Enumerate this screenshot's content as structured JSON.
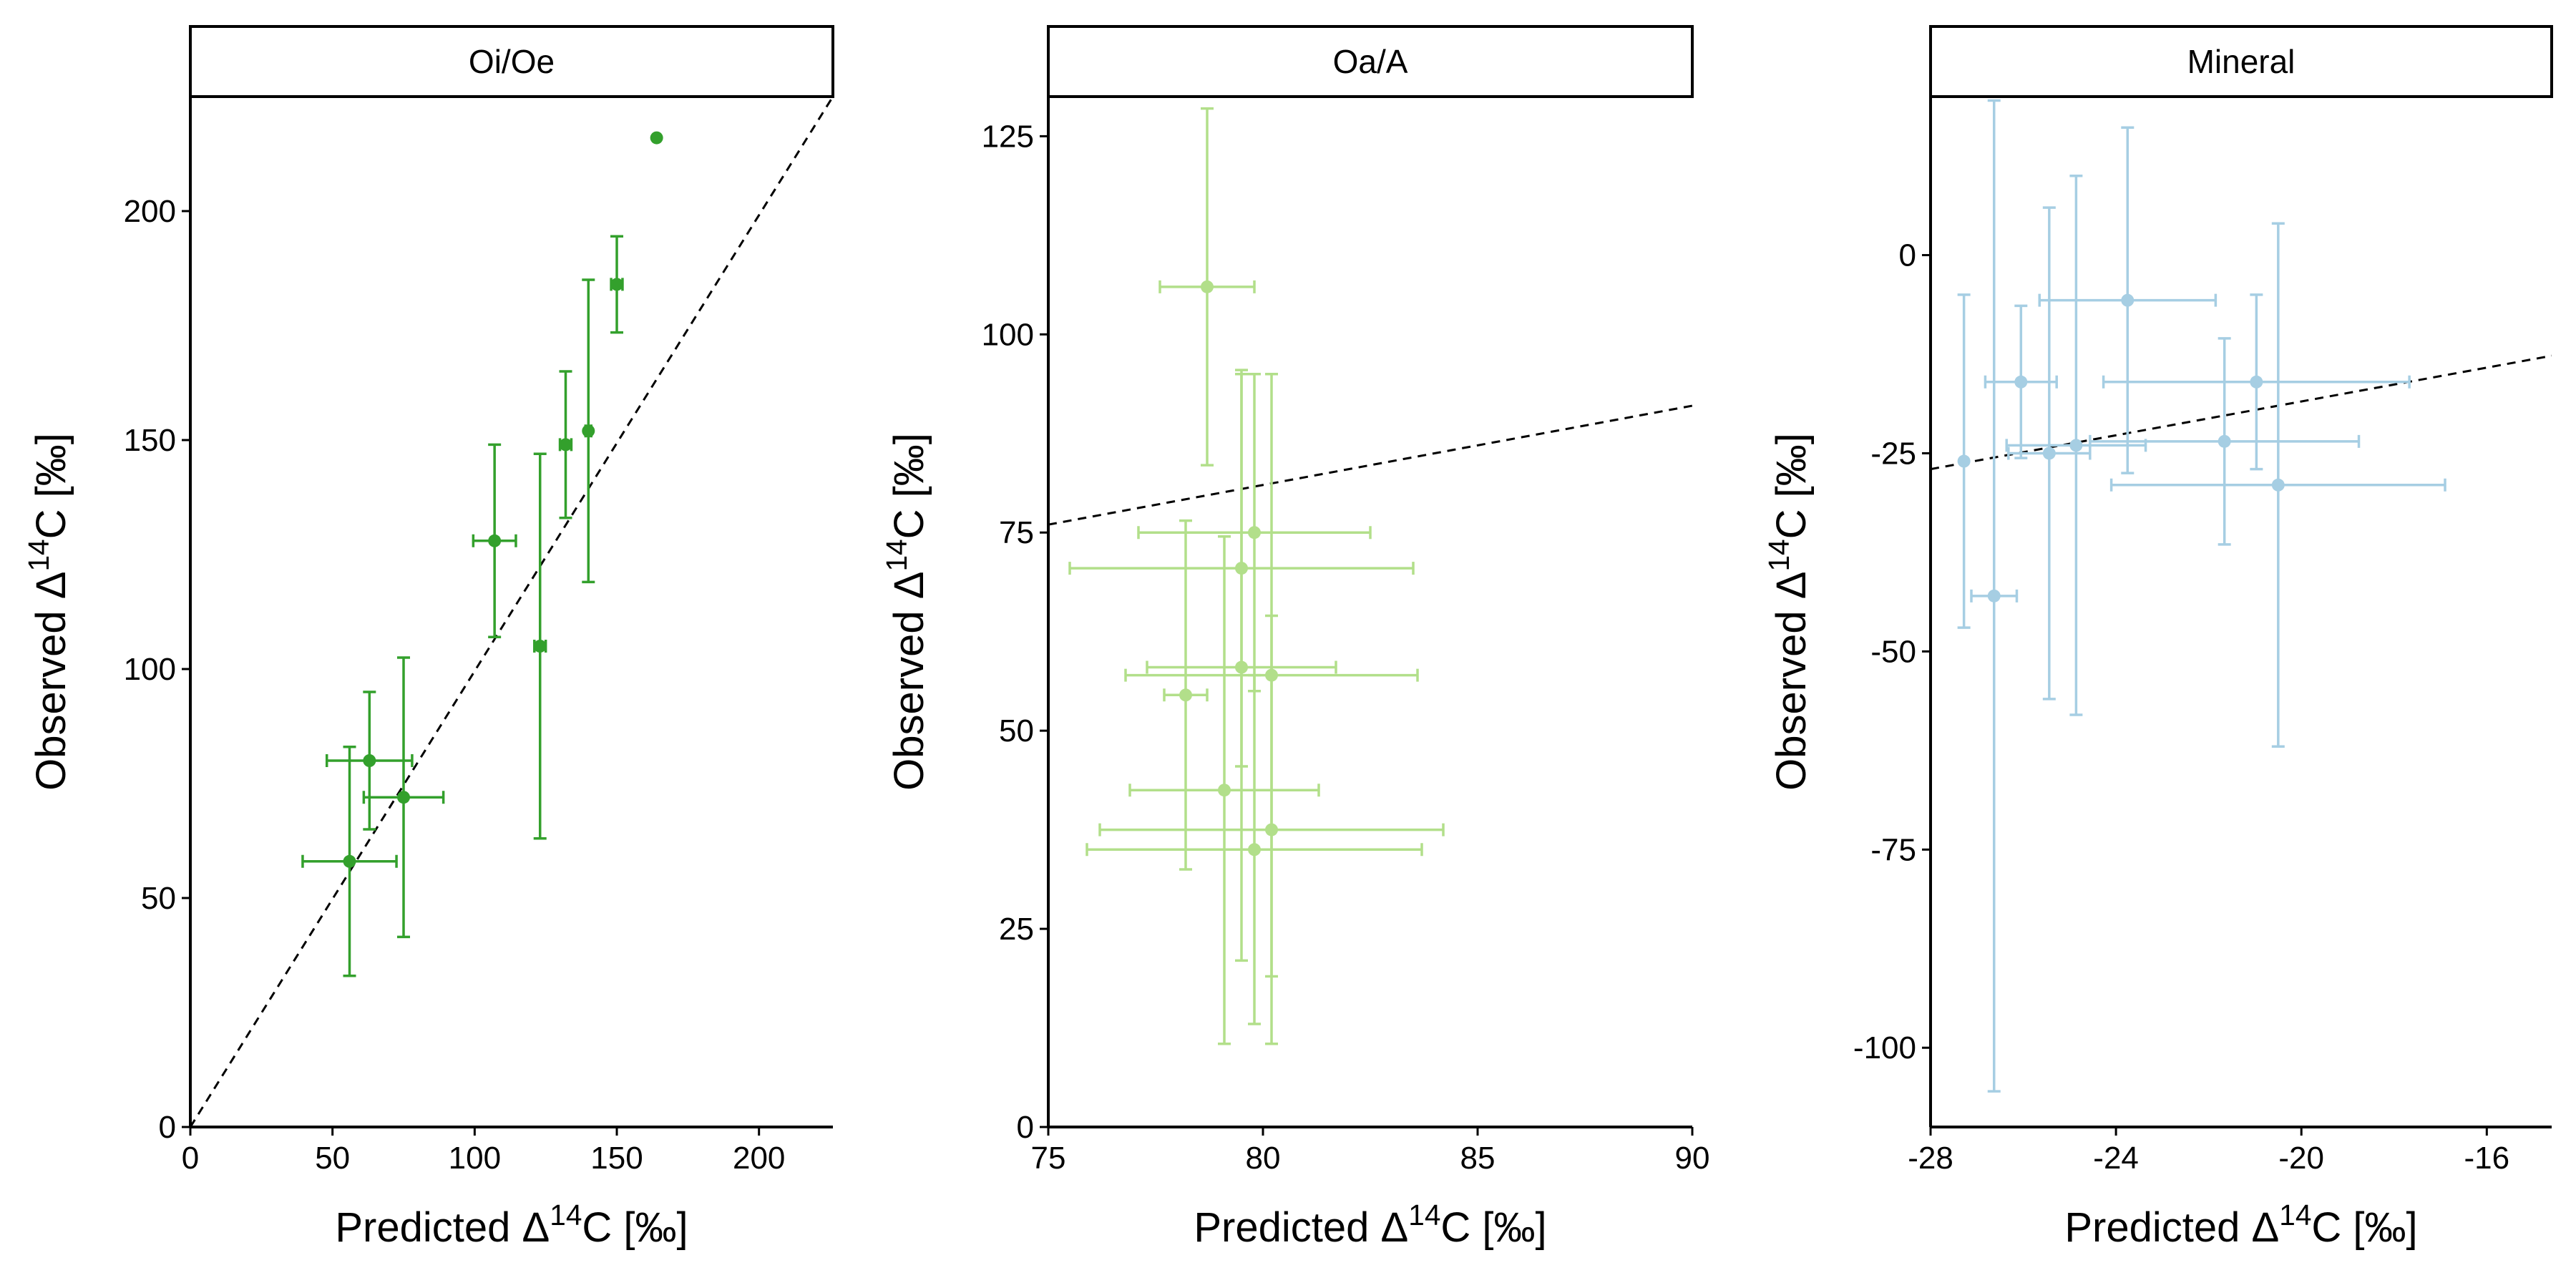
{
  "chart_data": [
    {
      "type": "scatter",
      "title": "Oi/Oe",
      "x_label": "Predicted Δ14C [‰]",
      "y_label": "Observed Δ14C [‰]",
      "color": "#33a02c",
      "x": [
        56,
        63,
        75,
        107,
        123,
        132,
        140,
        150,
        164
      ],
      "y": [
        58,
        80,
        72,
        128,
        105,
        149,
        152,
        184,
        216
      ],
      "xerr": [
        16.5,
        15,
        14,
        7.5,
        2,
        2,
        1,
        2,
        null
      ],
      "yerr": [
        25,
        15,
        30.5,
        21,
        42,
        16,
        33,
        10.5,
        null
      ],
      "xlim": [
        0,
        226
      ],
      "ylim": [
        0,
        225
      ],
      "xticks": [
        0,
        50,
        100,
        150,
        200
      ],
      "yticks": [
        0,
        50,
        100,
        150,
        200
      ],
      "reference_line": {
        "x": [
          0,
          226
        ],
        "y": [
          0,
          225
        ]
      }
    },
    {
      "type": "scatter",
      "title": "Oa/A",
      "x_label": "Predicted Δ14C [‰]",
      "y_label": "Observed Δ14C [‰]",
      "color": "#b2df8a",
      "x": [
        78.7,
        79.8,
        79.5,
        79.5,
        78.2,
        80.2,
        79.1,
        80.2,
        79.8
      ],
      "y": [
        106,
        75,
        70.5,
        58,
        54.5,
        57,
        42.5,
        37.5,
        35
      ],
      "xerr": [
        1.1,
        2.7,
        4,
        2.2,
        0.5,
        3.4,
        2.2,
        4,
        3.9
      ],
      "yerr": [
        22.5,
        20,
        25,
        37,
        22,
        38,
        32,
        27,
        22
      ],
      "xlim": [
        75,
        90
      ],
      "ylim": [
        0,
        130
      ],
      "xticks": [
        75,
        80,
        85,
        90
      ],
      "yticks": [
        0,
        25,
        50,
        75,
        100,
        125
      ],
      "reference_line": {
        "x": [
          75,
          90
        ],
        "y": [
          76,
          91
        ]
      }
    },
    {
      "type": "scatter",
      "title": "Mineral",
      "x_label": "Predicted Δ14C [‰]",
      "y_label": "Observed Δ14C [‰]",
      "color": "#a6cee3",
      "x": [
        -27.28,
        -26.63,
        -26.05,
        -25.44,
        -24.86,
        -23.75,
        -21.66,
        -20.97,
        -20.5
      ],
      "y": [
        -26,
        -43,
        -16,
        -25,
        -24,
        -5.7,
        -23.5,
        -16,
        -29
      ],
      "xerr": [
        null,
        0.49,
        0.77,
        0.88,
        1.5,
        1.9,
        2.9,
        3.3,
        3.6
      ],
      "yerr": [
        21,
        62.5,
        9.6,
        31,
        34,
        21.8,
        13,
        11,
        33
      ],
      "xlim": [
        -28,
        -14.6
      ],
      "ylim": [
        -110,
        20
      ],
      "xticks": [
        -28,
        -24,
        -20,
        -16
      ],
      "yticks": [
        -100,
        -75,
        -50,
        -25,
        0
      ],
      "reference_line": {
        "x": [
          -28,
          -14.6
        ],
        "y": [
          -27,
          -12.7
        ]
      }
    }
  ]
}
